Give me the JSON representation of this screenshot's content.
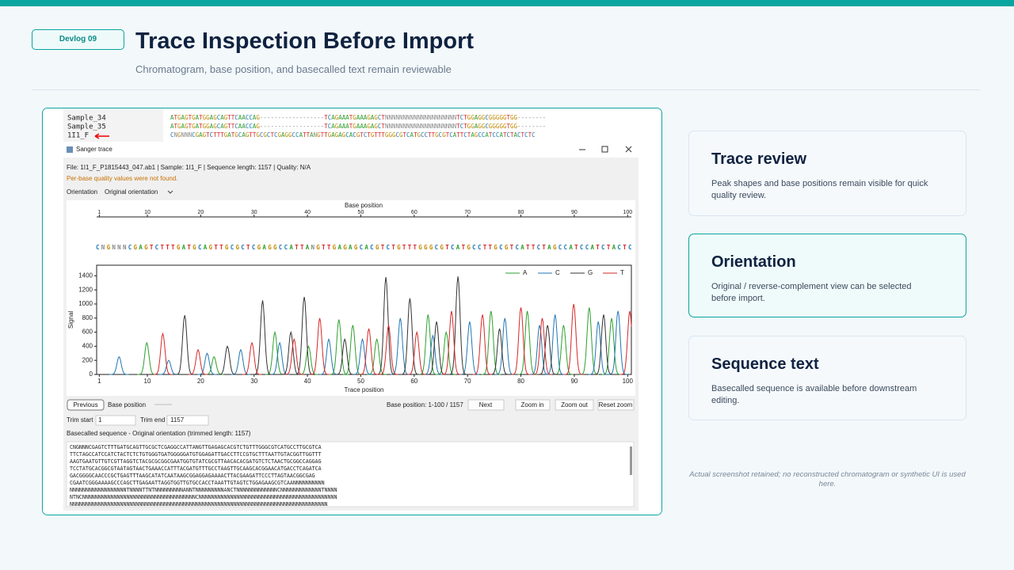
{
  "header": {
    "badge": "Devlog 09",
    "title": "Trace Inspection Before Import",
    "subtitle": "Chromatogram, base position, and basecalled text remain reviewable"
  },
  "screenshot": {
    "alignment": [
      {
        "name": "Sample_34",
        "sequence": "ATGAGTGATGGAGCAGTTCAACCAG------------------TCAGAAATGAAAGAGCTNNNNNNNNNNNNNNNNNNNNTCTGGAGGCGGGGGTGG--------"
      },
      {
        "name": "Sample_35",
        "sequence": "ATGAGTGATGGAGCAGTTCAACCAG------------------TCAGAAATGAAAGAGCTNNNNNNNNNNNNNNNNNNNNTCTGGAGGCGGGGGTGG--------"
      },
      {
        "name": "1I1_F",
        "sequence": "CNGNNNCGAGTCTTTGATGCAGTTGCGCTCGAGGCCATTANGTTGAGAGCACGTCTGTTTGGGCGTCATGCCTTGCGTCATTCTAGCCATCCATCTACTCTC"
      }
    ],
    "window_title": "Sanger trace",
    "file_info": "File: 1I1_F_P1815443_047.ab1   |   Sample: 1I1_F   |   Sequence length: 1157   |   Quality: N/A",
    "warning": "Per-base quality values were not found.",
    "orientation_label": "Orientation",
    "orientation_value": "Original orientation",
    "previous": "Previous",
    "base_position_label": "Base position",
    "range": "Base position: 1-100 / 1157",
    "next": "Next",
    "zoom_in": "Zoom in",
    "zoom_out": "Zoom out",
    "reset_zoom": "Reset zoom",
    "trim_start_label": "Trim start",
    "trim_start_value": "1",
    "trim_end_label": "Trim end",
    "trim_end_value": "1157",
    "sequence_header": "Basecalled sequence - Original orientation (trimmed length: 1157)",
    "sequence_lines": [
      "CNGNNNCGAGTCTTTGATGCAGTTGCGCTCGAGGCCATTANGTTGAGAGCACGTCTGTTTGGGCGTCATGCCTTGCGTCA",
      "TTCTAGCCATCCATCTACTCTCTGTGGGTGATGGGGGATGTGGAGATTGACCTTCCGTGCTTTAATTGTACGGTTGGTTT",
      "AAGTGAATGTTGTCGTTAGGTCTACGCGCGGCGAATGGTGTATCGCGTTAACACACGATGTCTCTAACTGCGGCCAGGAG",
      "TCCTATGCACGGCGTAATAGTAACTGAAACCATTTACGATGTTTGCCTAAGTTGCAAGCACGGAACATGACCTCAGATCA",
      "GACGGGGCAACCCGCTGAGTTTAAGCATATCAATAAGCGGAGGAGAAAACTTACGAAGATTCCCTTAGTAACGGCGAG",
      "CGAATCGGGAAAAGCCCAGCTTGAGAATTAGGTGGTTGTGCCACCTAAATTGTAGTCTGGAGAAGCGTCAANNNNNNNNNN",
      "NNNNNNNNNNNNNNNNNNTNNNNTTNTNNNNNNNNNANNTNNNNNNNNNANCTNNNNNNNNNNNNNCNNNNNNNNNNNNNTNNNN",
      "NTNCNNNNNNNNNNNNNNNNNNNNNNNNNNNNNNNNNNNNCNNNNNNNNNNNNNNNNNNNNNNNNNNNNNNNNNNNNNNNNNNNN",
      "NNNNNNNNNNNNNNNNNNNNNNNNNNNNNNNNNNNNNNNNNNNNNNNNNNNNNNNNNNNNNNNNNNNNNNNNNNNNNNNNNN"
    ]
  },
  "chart_data": {
    "type": "line",
    "top_axis_label": "Base position",
    "top_xticks": [
      1,
      10,
      20,
      30,
      40,
      50,
      60,
      70,
      80,
      90,
      100
    ],
    "bases": "CNGNNNCGAGTCTTTGATGCAGTTGCGCTCGAGGCCATTANGTTGAGAGCACGTCTGTTTGGGCGTCATGCCTTGCGTCATTCTAGCCATCCATCTACTC",
    "xlabel": "Trace position",
    "ylabel": "Signal",
    "xlim": [
      0.5,
      100.7
    ],
    "xticks": [
      1,
      10,
      20,
      30,
      40,
      50,
      60,
      70,
      80,
      90,
      100
    ],
    "ylim": [
      0,
      1550
    ],
    "yticks": [
      0,
      200,
      400,
      600,
      800,
      1000,
      1200,
      1400
    ],
    "legend": "upper right",
    "series": [
      {
        "name": "A",
        "color": "#2ca02c",
        "x": [
          9.9,
          22.5,
          33.9,
          40.2,
          45.9,
          48.5,
          53.0,
          62.6,
          66.0,
          74.4,
          81.2,
          88.0,
          92.8,
          97.0
        ],
        "values": [
          450,
          250,
          600,
          400,
          780,
          700,
          500,
          850,
          600,
          900,
          900,
          700,
          950,
          800
        ]
      },
      {
        "name": "C",
        "color": "#1f77b4",
        "x": [
          4.7,
          14.0,
          21.2,
          27.5,
          34.8,
          44.0,
          50.3,
          57.4,
          63.5,
          70.4,
          77.0,
          83.5,
          86.4,
          94.5,
          98.2
        ],
        "values": [
          250,
          200,
          300,
          350,
          450,
          500,
          500,
          800,
          550,
          750,
          800,
          700,
          850,
          750,
          900
        ]
      },
      {
        "name": "G",
        "color": "#333333",
        "x": [
          17.0,
          25.0,
          31.6,
          36.9,
          39.4,
          47.0,
          54.7,
          59.2,
          64.2,
          68.2,
          76.0,
          85.0,
          95.5
        ],
        "values": [
          840,
          400,
          1050,
          600,
          1100,
          500,
          1380,
          1080,
          750,
          1390,
          650,
          700,
          850
        ]
      },
      {
        "name": "T",
        "color": "#d62728",
        "x": [
          12.9,
          19.5,
          29.6,
          37.5,
          42.3,
          51.5,
          55.2,
          60.5,
          67.0,
          72.8,
          80.0,
          84.0,
          89.9,
          100.4
        ],
        "values": [
          580,
          350,
          450,
          500,
          800,
          650,
          700,
          600,
          900,
          850,
          950,
          800,
          1000,
          900
        ]
      }
    ]
  },
  "cards": [
    {
      "title": "Trace review",
      "body": "Peak shapes and base positions remain visible for quick quality review."
    },
    {
      "title": "Orientation",
      "body": "Original / reverse-complement view can be selected before import."
    },
    {
      "title": "Sequence text",
      "body": "Basecalled sequence is available before downstream editing."
    }
  ],
  "footnote": "Actual screenshot retained; no reconstructed chromatogram or synthetic UI is used here."
}
